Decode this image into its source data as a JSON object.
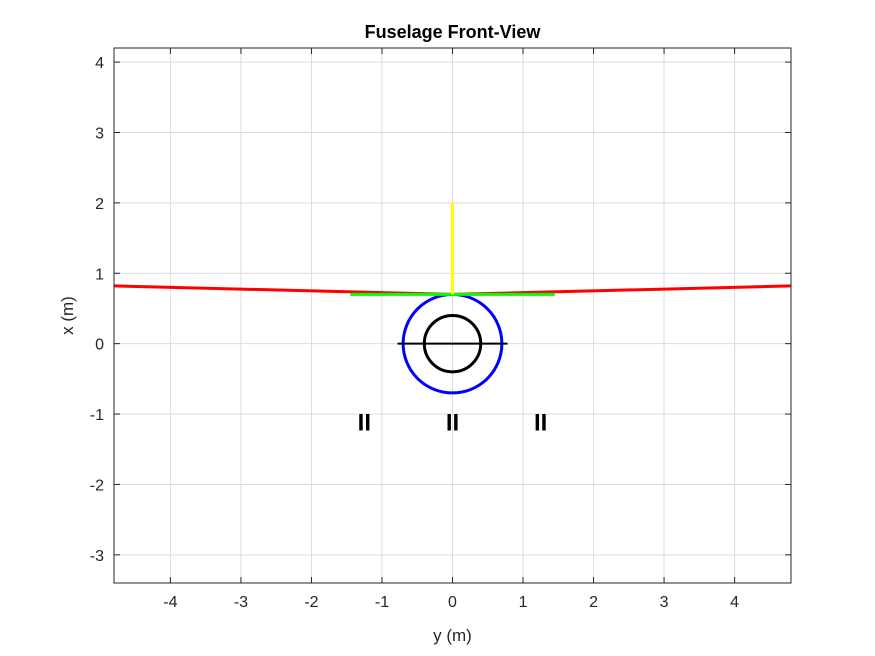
{
  "chart_data": {
    "type": "line",
    "title": "Fuselage Front-View",
    "xlabel": "y (m)",
    "ylabel": "x (m)",
    "xlim": [
      -4.8,
      4.8
    ],
    "ylim": [
      -3.4,
      4.2
    ],
    "xticks": [
      -4,
      -3,
      -2,
      -1,
      0,
      1,
      2,
      3,
      4
    ],
    "yticks": [
      -3,
      -2,
      -1,
      0,
      1,
      2,
      3,
      4
    ],
    "grid": true,
    "series": [
      {
        "color": "#ff0000",
        "width": 3,
        "x": [
          -4.8,
          0,
          4.8
        ],
        "y": [
          0.82,
          0.7,
          0.82
        ]
      },
      {
        "color": "#00ff00",
        "width": 3,
        "x": [
          -1.45,
          0,
          1.45
        ],
        "y": [
          0.7,
          0.7,
          0.7
        ]
      },
      {
        "color": "#ffff00",
        "width": 3,
        "x": [
          0,
          0
        ],
        "y": [
          0.7,
          2.0
        ]
      },
      {
        "color": "#000000",
        "width": 2,
        "x": [
          -0.78,
          0.78
        ],
        "y": [
          0,
          0
        ]
      }
    ],
    "circles": [
      {
        "color": "#0000ff",
        "width": 3,
        "cx": 0,
        "cy": 0,
        "r": 0.7
      },
      {
        "color": "#000000",
        "width": 3,
        "cx": 0,
        "cy": 0,
        "r": 0.4
      }
    ],
    "annotations": [
      {
        "text": "II",
        "x": -1.25,
        "y": -1.12
      },
      {
        "text": "II",
        "x": 0,
        "y": -1.12
      },
      {
        "text": "II",
        "x": 1.25,
        "y": -1.12
      }
    ]
  }
}
